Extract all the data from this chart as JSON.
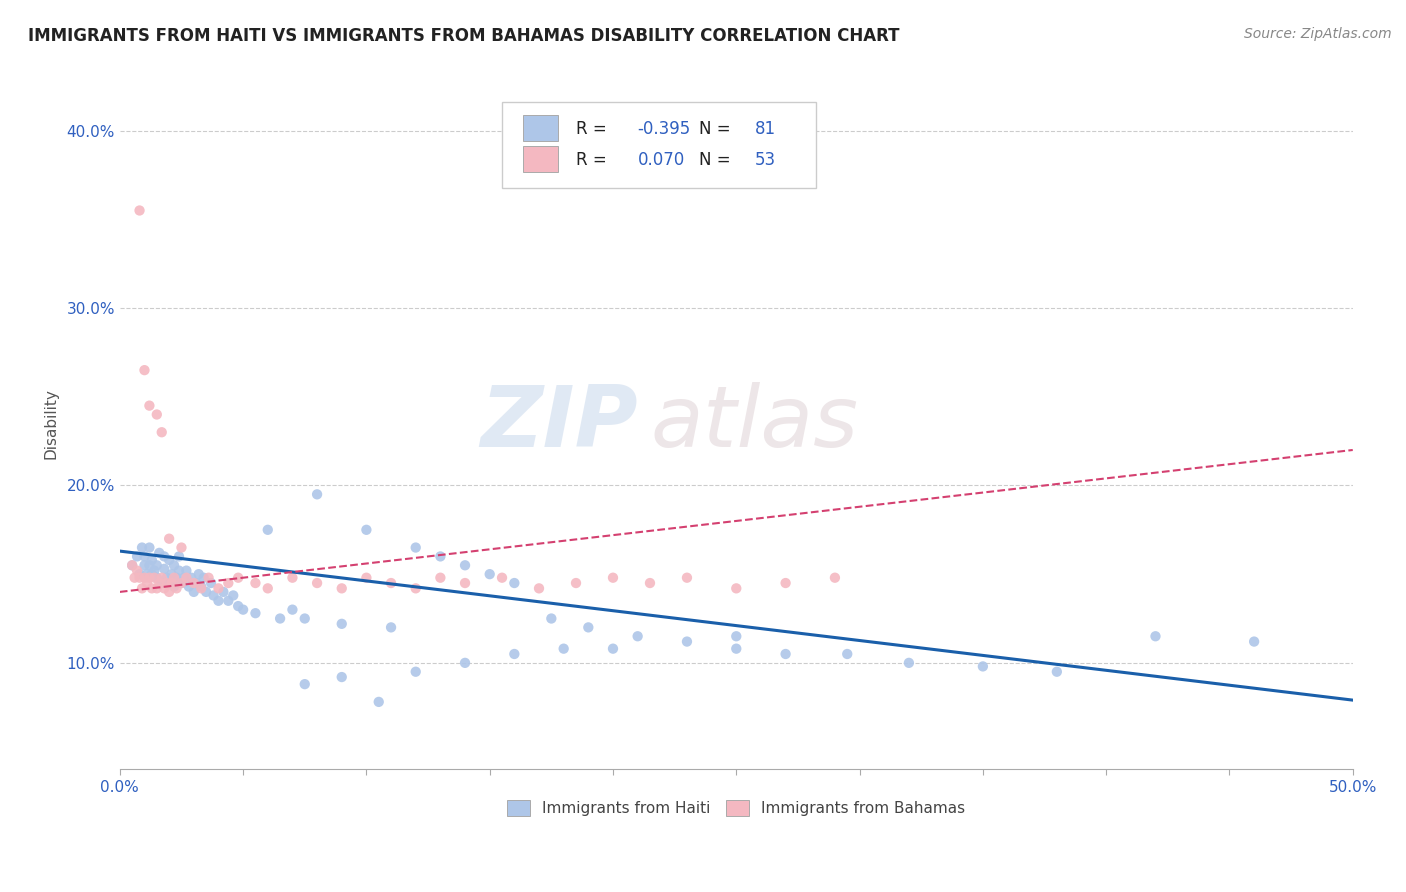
{
  "title": "IMMIGRANTS FROM HAITI VS IMMIGRANTS FROM BAHAMAS DISABILITY CORRELATION CHART",
  "source": "Source: ZipAtlas.com",
  "ylabel": "Disability",
  "xlim": [
    0.0,
    0.5
  ],
  "ylim": [
    0.04,
    0.43
  ],
  "yticks": [
    0.1,
    0.2,
    0.3,
    0.4
  ],
  "ytick_labels": [
    "10.0%",
    "20.0%",
    "30.0%",
    "40.0%"
  ],
  "xticks": [
    0.0,
    0.05,
    0.1,
    0.15,
    0.2,
    0.25,
    0.3,
    0.35,
    0.4,
    0.45,
    0.5
  ],
  "xtick_labels": [
    "0.0%",
    "",
    "",
    "",
    "",
    "",
    "",
    "",
    "",
    "",
    "50.0%"
  ],
  "haiti_color": "#aec6e8",
  "bahamas_color": "#f4b8c1",
  "haiti_line_color": "#1a5faa",
  "bahamas_line_color": "#d44070",
  "haiti_R": -0.395,
  "haiti_N": 81,
  "bahamas_R": 0.07,
  "bahamas_N": 53,
  "legend_text_color": "#3060c0",
  "haiti_scatter_x": [
    0.005,
    0.007,
    0.008,
    0.009,
    0.01,
    0.01,
    0.011,
    0.012,
    0.012,
    0.013,
    0.013,
    0.014,
    0.015,
    0.015,
    0.016,
    0.017,
    0.018,
    0.018,
    0.019,
    0.02,
    0.02,
    0.021,
    0.022,
    0.022,
    0.023,
    0.024,
    0.024,
    0.025,
    0.026,
    0.027,
    0.028,
    0.029,
    0.03,
    0.031,
    0.032,
    0.033,
    0.034,
    0.035,
    0.037,
    0.038,
    0.04,
    0.042,
    0.044,
    0.046,
    0.048,
    0.05,
    0.055,
    0.06,
    0.065,
    0.07,
    0.075,
    0.08,
    0.09,
    0.1,
    0.11,
    0.12,
    0.13,
    0.14,
    0.15,
    0.16,
    0.175,
    0.19,
    0.21,
    0.23,
    0.25,
    0.27,
    0.295,
    0.32,
    0.35,
    0.38,
    0.42,
    0.46,
    0.25,
    0.2,
    0.18,
    0.16,
    0.14,
    0.12,
    0.105,
    0.09,
    0.075
  ],
  "haiti_scatter_y": [
    0.155,
    0.16,
    0.15,
    0.165,
    0.155,
    0.16,
    0.15,
    0.155,
    0.165,
    0.15,
    0.158,
    0.152,
    0.148,
    0.155,
    0.162,
    0.145,
    0.153,
    0.16,
    0.148,
    0.145,
    0.158,
    0.15,
    0.143,
    0.155,
    0.148,
    0.152,
    0.16,
    0.145,
    0.148,
    0.152,
    0.143,
    0.148,
    0.14,
    0.145,
    0.15,
    0.143,
    0.148,
    0.14,
    0.145,
    0.138,
    0.135,
    0.14,
    0.135,
    0.138,
    0.132,
    0.13,
    0.128,
    0.175,
    0.125,
    0.13,
    0.125,
    0.195,
    0.122,
    0.175,
    0.12,
    0.165,
    0.16,
    0.155,
    0.15,
    0.145,
    0.125,
    0.12,
    0.115,
    0.112,
    0.108,
    0.105,
    0.105,
    0.1,
    0.098,
    0.095,
    0.115,
    0.112,
    0.115,
    0.108,
    0.108,
    0.105,
    0.1,
    0.095,
    0.078,
    0.092,
    0.088
  ],
  "bahamas_scatter_x": [
    0.005,
    0.006,
    0.007,
    0.008,
    0.009,
    0.01,
    0.011,
    0.012,
    0.013,
    0.014,
    0.015,
    0.016,
    0.017,
    0.018,
    0.019,
    0.02,
    0.021,
    0.022,
    0.023,
    0.025,
    0.027,
    0.03,
    0.033,
    0.036,
    0.04,
    0.044,
    0.048,
    0.055,
    0.06,
    0.07,
    0.08,
    0.09,
    0.1,
    0.11,
    0.12,
    0.13,
    0.14,
    0.155,
    0.17,
    0.185,
    0.2,
    0.215,
    0.23,
    0.25,
    0.27,
    0.29,
    0.008,
    0.01,
    0.012,
    0.015,
    0.017,
    0.02,
    0.025
  ],
  "bahamas_scatter_y": [
    0.155,
    0.148,
    0.152,
    0.148,
    0.142,
    0.148,
    0.145,
    0.148,
    0.142,
    0.148,
    0.142,
    0.145,
    0.148,
    0.142,
    0.145,
    0.14,
    0.145,
    0.148,
    0.142,
    0.145,
    0.148,
    0.145,
    0.142,
    0.148,
    0.142,
    0.145,
    0.148,
    0.145,
    0.142,
    0.148,
    0.145,
    0.142,
    0.148,
    0.145,
    0.142,
    0.148,
    0.145,
    0.148,
    0.142,
    0.145,
    0.148,
    0.145,
    0.148,
    0.142,
    0.145,
    0.148,
    0.355,
    0.265,
    0.245,
    0.24,
    0.23,
    0.17,
    0.165
  ]
}
